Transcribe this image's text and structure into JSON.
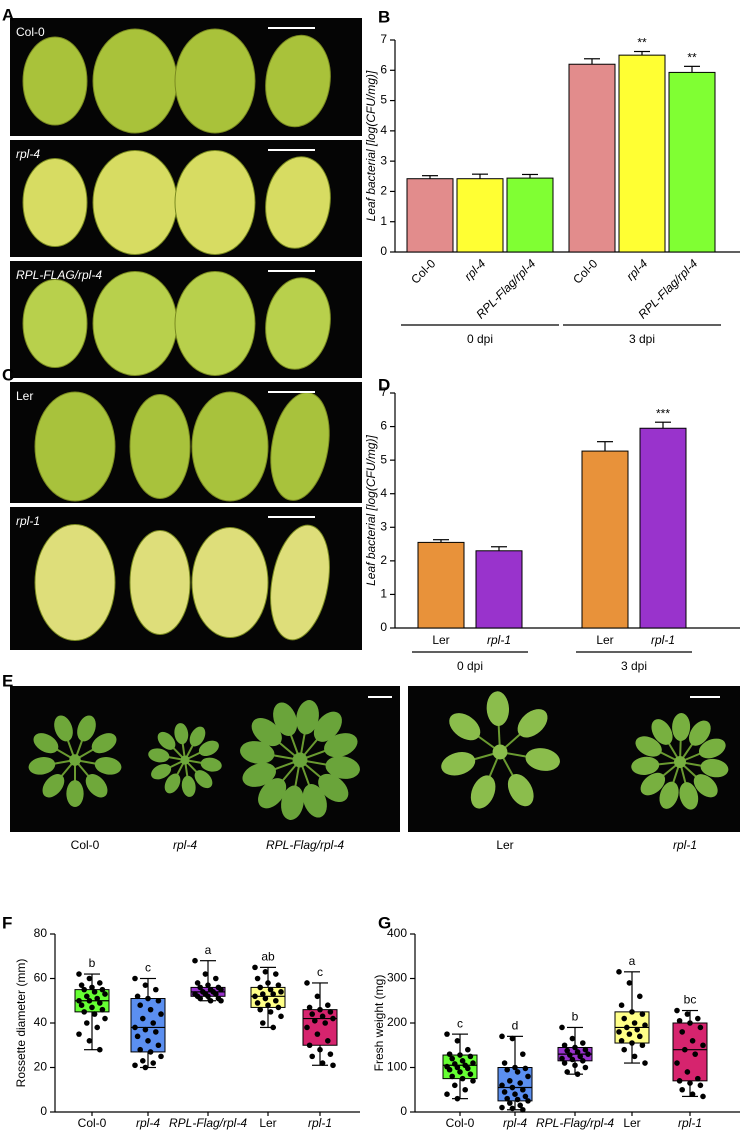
{
  "panels": {
    "letters": [
      "A",
      "B",
      "C",
      "D",
      "E",
      "F",
      "G"
    ],
    "a_labels": [
      "Col-0",
      "rpl-4",
      "RPL-FLAG/rpl-4"
    ],
    "c_labels": [
      "Ler",
      "rpl-1"
    ],
    "e_labels": [
      "Col-0",
      "rpl-4",
      "RPL-Flag/rpl-4",
      "Ler",
      "rpl-1"
    ]
  },
  "chart_data": [
    {
      "type": "bar",
      "y_label": "Leaf bacterial [log(CFU/mg)]",
      "categories": [
        "Col-0",
        "rpl-4",
        "RPL-Flag/rpl-4",
        "Col-0",
        "rpl-4",
        "RPL-Flag/rpl-4"
      ],
      "groups": [
        "0 dpi",
        "3 dpi"
      ],
      "values": [
        2.42,
        2.42,
        2.44,
        6.2,
        6.5,
        5.93
      ],
      "errors": [
        0.1,
        0.15,
        0.12,
        0.18,
        0.12,
        0.2
      ],
      "colors": [
        "#e28c8c",
        "#ffff33",
        "#80ff33",
        "#e28c8c",
        "#ffff33",
        "#80ff33"
      ],
      "annotations": [
        {
          "category": 4,
          "text": "**"
        },
        {
          "category": 5,
          "text": "**"
        }
      ],
      "ylim": [
        0,
        7
      ],
      "yticks": [
        0,
        1,
        2,
        3,
        4,
        5,
        6,
        7
      ]
    },
    {
      "type": "bar",
      "y_label": "Leaf bacterial [log(CFU/mg)]",
      "categories": [
        "Ler",
        "rpl-1",
        "Ler",
        "rpl-1"
      ],
      "groups": [
        "0 dpi",
        "3 dpi"
      ],
      "values": [
        2.55,
        2.3,
        5.27,
        5.95
      ],
      "errors": [
        0.08,
        0.12,
        0.28,
        0.18
      ],
      "colors": [
        "#e8923a",
        "#9933cc",
        "#e8923a",
        "#9933cc"
      ],
      "annotations": [
        {
          "category": 3,
          "text": "***"
        }
      ],
      "ylim": [
        0,
        7
      ],
      "yticks": [
        0,
        1,
        2,
        3,
        4,
        5,
        6,
        7
      ]
    },
    {
      "type": "box",
      "y_label": "Rossette diameter (mm)",
      "categories": [
        "Col-0",
        "rpl-4",
        "RPL-Flag/rpl-4",
        "Ler",
        "rpl-1"
      ],
      "ylim": [
        0,
        80
      ],
      "yticks": [
        0,
        20,
        40,
        60,
        80
      ],
      "boxes": [
        {
          "color": "#66ff33",
          "low": 28,
          "q1": 45,
          "median": 50,
          "q3": 55,
          "high": 62,
          "letter": "b",
          "points": [
            62,
            60,
            58,
            57,
            56,
            55,
            55,
            54,
            53,
            52,
            51,
            50,
            50,
            49,
            48,
            47,
            46,
            45,
            44,
            42,
            40,
            38,
            35,
            32,
            28
          ]
        },
        {
          "color": "#5b8ff0",
          "low": 20,
          "q1": 27,
          "median": 38,
          "q3": 51,
          "high": 60,
          "letter": "c",
          "points": [
            60,
            57,
            55,
            52,
            51,
            50,
            48,
            46,
            44,
            42,
            40,
            38,
            37,
            36,
            34,
            32,
            30,
            28,
            27,
            25,
            23,
            22,
            21,
            20
          ]
        },
        {
          "color": "#9933cc",
          "low": 50,
          "q1": 52,
          "median": 54,
          "q3": 56,
          "high": 68,
          "letter": "a",
          "points": [
            68,
            62,
            60,
            58,
            57,
            56,
            56,
            55,
            55,
            54,
            54,
            53,
            53,
            53,
            52,
            52,
            51,
            51,
            50,
            50
          ]
        },
        {
          "color": "#ffff88",
          "low": 38,
          "q1": 47,
          "median": 52,
          "q3": 56,
          "high": 65,
          "letter": "ab",
          "points": [
            65,
            63,
            62,
            60,
            58,
            57,
            56,
            55,
            54,
            53,
            53,
            52,
            51,
            50,
            49,
            48,
            47,
            46,
            45,
            43,
            40,
            38
          ]
        },
        {
          "color": "#d6246e",
          "low": 21,
          "q1": 30,
          "median": 42,
          "q3": 46,
          "high": 58,
          "letter": "c",
          "points": [
            58,
            52,
            48,
            47,
            46,
            45,
            44,
            43,
            42,
            41,
            40,
            38,
            35,
            32,
            30,
            28,
            26,
            25,
            22,
            21
          ]
        }
      ]
    },
    {
      "type": "box",
      "y_label": "Fresh weight (mg)",
      "categories": [
        "Col-0",
        "rpl-4",
        "RPL-Flag/rpl-4",
        "Ler",
        "rpl-1"
      ],
      "ylim": [
        0,
        400
      ],
      "yticks": [
        0,
        100,
        200,
        300,
        400
      ],
      "boxes": [
        {
          "color": "#66ff33",
          "low": 30,
          "q1": 75,
          "median": 105,
          "q3": 128,
          "high": 175,
          "letter": "c",
          "points": [
            175,
            160,
            140,
            130,
            128,
            125,
            120,
            115,
            110,
            108,
            105,
            102,
            100,
            98,
            95,
            90,
            85,
            80,
            75,
            70,
            60,
            50,
            40,
            30
          ]
        },
        {
          "color": "#5b8ff0",
          "low": 5,
          "q1": 25,
          "median": 55,
          "q3": 100,
          "high": 170,
          "letter": "d",
          "points": [
            170,
            165,
            130,
            110,
            100,
            98,
            95,
            90,
            80,
            70,
            65,
            60,
            55,
            50,
            45,
            40,
            35,
            30,
            28,
            25,
            20,
            15,
            10,
            8,
            5
          ]
        },
        {
          "color": "#9933cc",
          "low": 85,
          "q1": 115,
          "median": 130,
          "q3": 145,
          "high": 190,
          "letter": "b",
          "points": [
            190,
            165,
            155,
            150,
            145,
            140,
            138,
            135,
            130,
            128,
            125,
            120,
            118,
            115,
            110,
            105,
            100,
            90,
            85
          ]
        },
        {
          "color": "#ffff88",
          "low": 110,
          "q1": 155,
          "median": 190,
          "q3": 225,
          "high": 315,
          "letter": "a",
          "points": [
            315,
            290,
            260,
            240,
            225,
            220,
            210,
            200,
            195,
            190,
            185,
            180,
            175,
            170,
            160,
            155,
            150,
            140,
            125,
            110
          ]
        },
        {
          "color": "#d6246e",
          "low": 35,
          "q1": 70,
          "median": 140,
          "q3": 200,
          "high": 228,
          "letter": "bc",
          "points": [
            228,
            220,
            210,
            205,
            200,
            190,
            180,
            160,
            150,
            140,
            130,
            110,
            90,
            75,
            70,
            65,
            60,
            50,
            40,
            35
          ]
        }
      ]
    }
  ]
}
